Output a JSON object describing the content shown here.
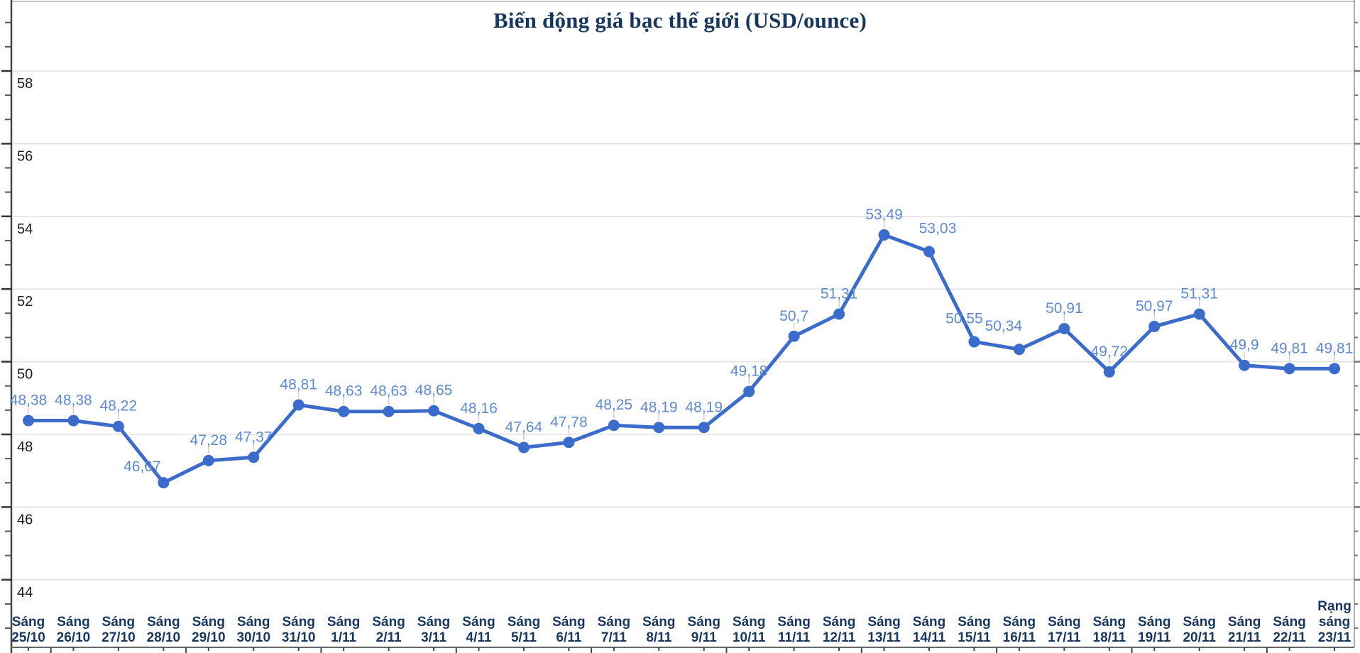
{
  "chart_data": {
    "type": "line",
    "title": "Biến động giá bạc thế giới (USD/ounce)",
    "xlabel": "",
    "ylabel": "",
    "ylim": [
      42,
      60
    ],
    "yticks": [
      44,
      46,
      48,
      50,
      52,
      54,
      56,
      58
    ],
    "y_minor_subdivisions": 3,
    "grid": "horizontal",
    "legend": "none",
    "categories": [
      [
        "Sáng",
        "25/10"
      ],
      [
        "Sáng",
        "26/10"
      ],
      [
        "Sáng",
        "27/10"
      ],
      [
        "Sáng",
        "28/10"
      ],
      [
        "Sáng",
        "29/10"
      ],
      [
        "Sáng",
        "30/10"
      ],
      [
        "Sáng",
        "31/10"
      ],
      [
        "Sáng",
        "1/11"
      ],
      [
        "Sáng",
        "2/11"
      ],
      [
        "Sáng",
        "3/11"
      ],
      [
        "Sáng",
        "4/11"
      ],
      [
        "Sáng",
        "5/11"
      ],
      [
        "Sáng",
        "6/11"
      ],
      [
        "Sáng",
        "7/11"
      ],
      [
        "Sáng",
        "8/11"
      ],
      [
        "Sáng",
        "9/11"
      ],
      [
        "Sáng",
        "10/11"
      ],
      [
        "Sáng",
        "11/11"
      ],
      [
        "Sáng",
        "12/11"
      ],
      [
        "Sáng",
        "13/11"
      ],
      [
        "Sáng",
        "14/11"
      ],
      [
        "Sáng",
        "15/11"
      ],
      [
        "Sáng",
        "16/11"
      ],
      [
        "Sáng",
        "17/11"
      ],
      [
        "Sáng",
        "18/11"
      ],
      [
        "Sáng",
        "19/11"
      ],
      [
        "Sáng",
        "20/11"
      ],
      [
        "Sáng",
        "21/11"
      ],
      [
        "Sáng",
        "22/11"
      ],
      [
        "Rạng",
        "sáng",
        "23/11"
      ]
    ],
    "values": [
      48.38,
      48.38,
      48.22,
      46.67,
      47.28,
      47.37,
      48.81,
      48.63,
      48.63,
      48.65,
      48.16,
      47.64,
      47.78,
      48.25,
      48.19,
      48.19,
      49.18,
      50.7,
      51.31,
      53.49,
      53.03,
      50.55,
      50.34,
      50.91,
      49.72,
      50.97,
      51.31,
      49.9,
      49.81,
      49.81
    ],
    "point_labels": [
      "48,38",
      "48,38",
      "48,22",
      "46,67",
      "47,28",
      "47,37",
      "48,81",
      "48,63",
      "48,63",
      "48,65",
      "48,16",
      "47,64",
      "47,78",
      "48,25",
      "48,19",
      "48,19",
      "49,18",
      "50,7",
      "51,31",
      "53,49",
      "53,03",
      "50,55",
      "50,34",
      "50,91",
      "49,72",
      "50,97",
      "51,31",
      "49,9",
      "49,81",
      "49,81"
    ],
    "colors": {
      "line": "#3b6ccc",
      "marker": "#3b6ccc",
      "point_label": "#5d8ad2",
      "gridline": "#e2e2e2",
      "axis_frame": "#444444",
      "right_frame": "#999999",
      "tick": "#555555",
      "leader_line": "#cfcfcf",
      "x_label": "#17375e",
      "y_label": "#1c1c1c",
      "title": "#17365d",
      "background": "#ffffff"
    }
  }
}
